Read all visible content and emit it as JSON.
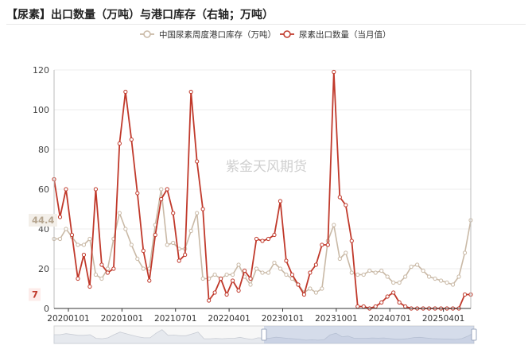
{
  "chart_data": {
    "type": "line",
    "title": "【尿素】出口数量（万吨）与港口库存（右轴；万吨）",
    "watermark": "紫金天风期货",
    "x_tick_labels": [
      "20200101",
      "20201001",
      "20210701",
      "20220401",
      "20230101",
      "20231001",
      "20240701",
      "20250401"
    ],
    "ylim": [
      0,
      120
    ],
    "y_ticks": [
      0,
      20,
      40,
      60,
      80,
      100,
      120
    ],
    "legend": "top",
    "grid": "horizontal",
    "series": [
      {
        "name": "中国尿素周度港口库存（万吨）",
        "color": "#c9b9a6",
        "axis": "right",
        "current_value_label": "44.4",
        "values": [
          35,
          35,
          40,
          36,
          32,
          32,
          35,
          17,
          15,
          20,
          35,
          48,
          40,
          32,
          25,
          20,
          20,
          42,
          60,
          32,
          33,
          30,
          30,
          39,
          48,
          15,
          15,
          17,
          15,
          17,
          17,
          22,
          16,
          12,
          20,
          18,
          18,
          23,
          20,
          17,
          15,
          12,
          8,
          10,
          8,
          10,
          34,
          42,
          25,
          28,
          18,
          17,
          17,
          19,
          18,
          19,
          16,
          13,
          13,
          16,
          21,
          22,
          19,
          16,
          15,
          14,
          13,
          12,
          16,
          28,
          44.4
        ]
      },
      {
        "name": "尿素出口数量（当月值）",
        "color": "#c0392b",
        "axis": "left",
        "current_value_label": "7",
        "values": [
          65,
          46,
          60,
          37,
          15,
          27,
          11,
          60,
          22,
          18,
          20,
          83,
          109,
          85,
          58,
          29,
          14,
          37,
          55,
          60,
          48,
          24,
          27,
          109,
          74,
          50,
          4,
          8,
          15,
          7,
          14,
          9,
          19,
          15,
          35,
          34,
          35,
          37,
          54,
          24,
          17,
          12,
          7,
          18,
          22,
          32,
          32,
          119,
          56,
          52,
          34,
          1,
          1,
          0,
          1,
          3,
          6,
          8,
          3,
          1,
          0,
          0,
          0,
          0,
          0,
          0,
          0,
          0,
          0,
          7,
          7
        ]
      }
    ]
  }
}
